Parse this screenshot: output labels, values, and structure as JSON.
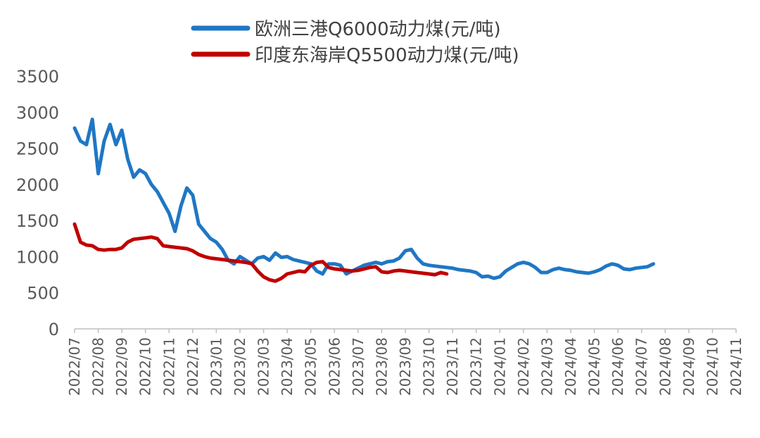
{
  "chart_data": {
    "type": "line",
    "title": "",
    "xlabel": "",
    "ylabel": "",
    "ylim": [
      0,
      3500
    ],
    "yticks": [
      0,
      500,
      1000,
      1500,
      2000,
      2500,
      3000,
      3500
    ],
    "x_ticks": [
      "2022/07",
      "2022/08",
      "2022/09",
      "2022/10",
      "2022/11",
      "2022/12",
      "2023/01",
      "2023/02",
      "2023/03",
      "2023/04",
      "2023/05",
      "2023/06",
      "2023/07",
      "2023/08",
      "2023/09",
      "2023/10",
      "2023/11",
      "2023/12",
      "2024/01",
      "2024/02",
      "2024/03",
      "2024/04",
      "2024/05",
      "2024/06",
      "2024/07",
      "2024/08",
      "2024/09",
      "2024/10",
      "2024/11"
    ],
    "legend_position": "top",
    "grid": false,
    "series": [
      {
        "name": "欧洲三港Q6000动力煤(元/吨)",
        "color": "#1F77C4",
        "points": [
          [
            "2022/07",
            2780
          ],
          [
            "2022/07b",
            2600
          ],
          [
            "2022/07c",
            2550
          ],
          [
            "2022/07d",
            2900
          ],
          [
            "2022/08",
            2150
          ],
          [
            "2022/08b",
            2600
          ],
          [
            "2022/08c",
            2830
          ],
          [
            "2022/08d",
            2550
          ],
          [
            "2022/09",
            2750
          ],
          [
            "2022/09b",
            2350
          ],
          [
            "2022/09c",
            2100
          ],
          [
            "2022/09d",
            2200
          ],
          [
            "2022/10",
            2150
          ],
          [
            "2022/10b",
            2000
          ],
          [
            "2022/10c",
            1900
          ],
          [
            "2022/10d",
            1750
          ],
          [
            "2022/11",
            1600
          ],
          [
            "2022/11b",
            1350
          ],
          [
            "2022/11c",
            1700
          ],
          [
            "2022/11d",
            1950
          ],
          [
            "2022/12",
            1850
          ],
          [
            "2022/12b",
            1450
          ],
          [
            "2022/12c",
            1350
          ],
          [
            "2022/12d",
            1250
          ],
          [
            "2023/01",
            1200
          ],
          [
            "2023/01b",
            1100
          ],
          [
            "2023/01c",
            950
          ],
          [
            "2023/01d",
            900
          ],
          [
            "2023/02",
            1000
          ],
          [
            "2023/02b",
            950
          ],
          [
            "2023/02c",
            900
          ],
          [
            "2023/02d",
            980
          ],
          [
            "2023/03",
            1000
          ],
          [
            "2023/03b",
            950
          ],
          [
            "2023/03c",
            1050
          ],
          [
            "2023/03d",
            990
          ],
          [
            "2023/04",
            1000
          ],
          [
            "2023/04b",
            960
          ],
          [
            "2023/04c",
            940
          ],
          [
            "2023/04d",
            920
          ],
          [
            "2023/05",
            900
          ],
          [
            "2023/05b",
            800
          ],
          [
            "2023/05c",
            760
          ],
          [
            "2023/05d",
            900
          ],
          [
            "2023/06",
            900
          ],
          [
            "2023/06b",
            880
          ],
          [
            "2023/06c",
            760
          ],
          [
            "2023/06d",
            800
          ],
          [
            "2023/07",
            840
          ],
          [
            "2023/07b",
            880
          ],
          [
            "2023/07c",
            900
          ],
          [
            "2023/07d",
            920
          ],
          [
            "2023/08",
            900
          ],
          [
            "2023/08b",
            930
          ],
          [
            "2023/08c",
            940
          ],
          [
            "2023/08d",
            980
          ],
          [
            "2023/09",
            1080
          ],
          [
            "2023/09b",
            1100
          ],
          [
            "2023/09c",
            980
          ],
          [
            "2023/09d",
            900
          ],
          [
            "2023/10",
            880
          ],
          [
            "2023/10b",
            870
          ],
          [
            "2023/10c",
            860
          ],
          [
            "2023/10d",
            850
          ],
          [
            "2023/11",
            840
          ],
          [
            "2023/11b",
            820
          ],
          [
            "2023/11c",
            810
          ],
          [
            "2023/11d",
            800
          ],
          [
            "2023/12",
            780
          ],
          [
            "2023/12b",
            720
          ],
          [
            "2023/12c",
            730
          ],
          [
            "2023/12d",
            700
          ],
          [
            "2024/01",
            720
          ],
          [
            "2024/01b",
            800
          ],
          [
            "2024/01c",
            850
          ],
          [
            "2024/01d",
            900
          ],
          [
            "2024/02",
            920
          ],
          [
            "2024/02b",
            900
          ],
          [
            "2024/02c",
            850
          ],
          [
            "2024/02d",
            780
          ],
          [
            "2024/03",
            780
          ],
          [
            "2024/03b",
            820
          ],
          [
            "2024/03c",
            840
          ],
          [
            "2024/03d",
            820
          ],
          [
            "2024/04",
            810
          ],
          [
            "2024/04b",
            790
          ],
          [
            "2024/04c",
            780
          ],
          [
            "2024/04d",
            770
          ],
          [
            "2024/05",
            790
          ],
          [
            "2024/05b",
            820
          ],
          [
            "2024/05c",
            870
          ],
          [
            "2024/05d",
            900
          ],
          [
            "2024/06",
            880
          ],
          [
            "2024/06b",
            830
          ],
          [
            "2024/06c",
            820
          ],
          [
            "2024/06d",
            840
          ],
          [
            "2024/07",
            850
          ],
          [
            "2024/07b",
            860
          ],
          [
            "2024/07c",
            900
          ]
        ]
      },
      {
        "name": "印度东海岸Q5500动力煤(元/吨)",
        "color": "#C00000",
        "points": [
          [
            "2022/07",
            1450
          ],
          [
            "2022/07b",
            1200
          ],
          [
            "2022/07c",
            1160
          ],
          [
            "2022/07d",
            1150
          ],
          [
            "2022/08",
            1100
          ],
          [
            "2022/08b",
            1090
          ],
          [
            "2022/08c",
            1100
          ],
          [
            "2022/08d",
            1100
          ],
          [
            "2022/09",
            1120
          ],
          [
            "2022/09b",
            1200
          ],
          [
            "2022/09c",
            1240
          ],
          [
            "2022/09d",
            1250
          ],
          [
            "2022/10",
            1260
          ],
          [
            "2022/10b",
            1270
          ],
          [
            "2022/10c",
            1250
          ],
          [
            "2022/10d",
            1150
          ],
          [
            "2022/11",
            1140
          ],
          [
            "2022/11b",
            1130
          ],
          [
            "2022/11c",
            1120
          ],
          [
            "2022/11d",
            1110
          ],
          [
            "2022/12",
            1080
          ],
          [
            "2022/12b",
            1030
          ],
          [
            "2022/12c",
            1000
          ],
          [
            "2022/12d",
            980
          ],
          [
            "2023/01",
            970
          ],
          [
            "2023/01b",
            960
          ],
          [
            "2023/01c",
            950
          ],
          [
            "2023/01d",
            940
          ],
          [
            "2023/02",
            930
          ],
          [
            "2023/02b",
            920
          ],
          [
            "2023/02c",
            900
          ],
          [
            "2023/02d",
            800
          ],
          [
            "2023/03",
            720
          ],
          [
            "2023/03b",
            680
          ],
          [
            "2023/03c",
            660
          ],
          [
            "2023/03d",
            700
          ],
          [
            "2023/04",
            760
          ],
          [
            "2023/04b",
            780
          ],
          [
            "2023/04c",
            800
          ],
          [
            "2023/04d",
            790
          ],
          [
            "2023/05",
            880
          ],
          [
            "2023/05b",
            920
          ],
          [
            "2023/05c",
            930
          ],
          [
            "2023/05d",
            850
          ],
          [
            "2023/06",
            830
          ],
          [
            "2023/06b",
            820
          ],
          [
            "2023/06c",
            810
          ],
          [
            "2023/06d",
            800
          ],
          [
            "2023/07",
            810
          ],
          [
            "2023/07b",
            830
          ],
          [
            "2023/07c",
            850
          ],
          [
            "2023/07d",
            860
          ],
          [
            "2023/08",
            790
          ],
          [
            "2023/08b",
            780
          ],
          [
            "2023/08c",
            800
          ],
          [
            "2023/08d",
            810
          ],
          [
            "2023/09",
            800
          ],
          [
            "2023/09b",
            790
          ],
          [
            "2023/09c",
            780
          ],
          [
            "2023/09d",
            770
          ],
          [
            "2023/10",
            760
          ],
          [
            "2023/10b",
            750
          ],
          [
            "2023/10c",
            780
          ],
          [
            "2023/10d",
            760
          ]
        ]
      }
    ]
  }
}
